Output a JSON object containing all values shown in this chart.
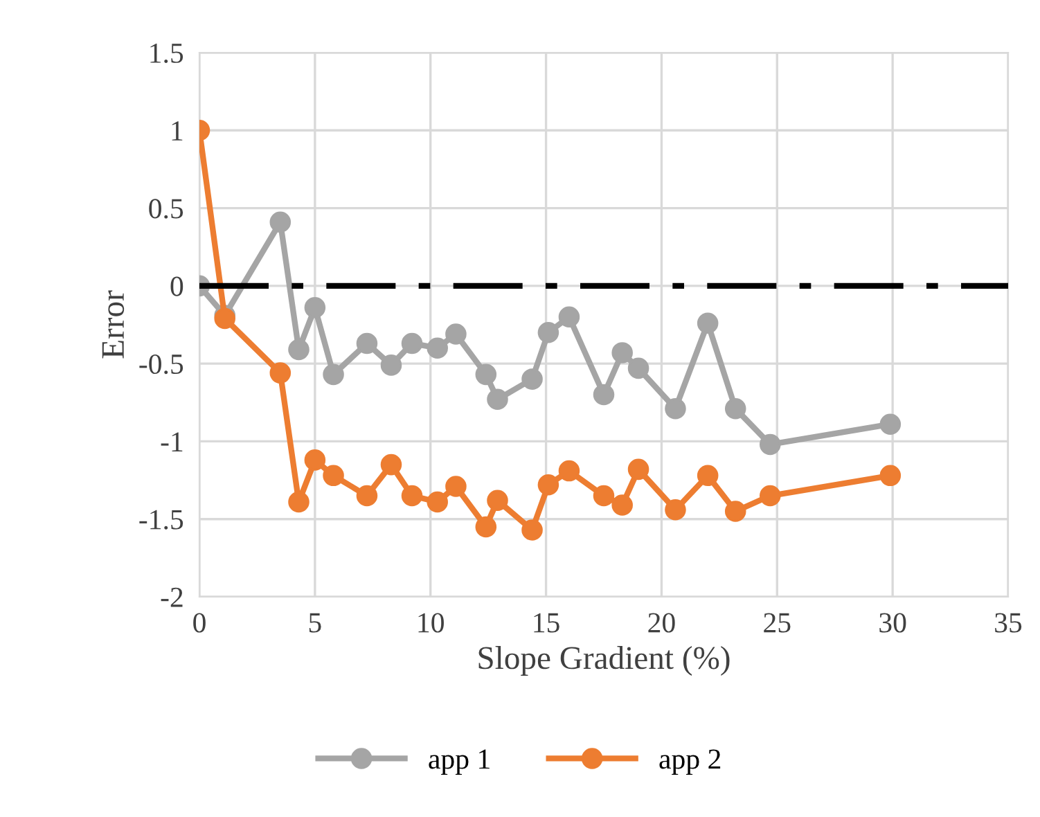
{
  "chart_data": {
    "type": "line",
    "xlabel": "Slope Gradient (%)",
    "ylabel": "Error",
    "xlim": [
      0,
      35
    ],
    "xticks": [
      0,
      5,
      10,
      15,
      20,
      25,
      30,
      35
    ],
    "ylim": [
      -2,
      1.5
    ],
    "yticks": [
      -2,
      -1.5,
      -1,
      -0.5,
      0,
      0.5,
      1,
      1.5
    ],
    "x": [
      0,
      1.1,
      3.5,
      4.3,
      5.0,
      5.8,
      7.25,
      8.3,
      9.2,
      10.3,
      11.1,
      12.4,
      12.9,
      14.4,
      15.1,
      16.0,
      17.5,
      18.3,
      19.0,
      20.6,
      22.0,
      23.2,
      24.7,
      29.9
    ],
    "series": [
      {
        "name": "app 1",
        "color": "#a5a5a5",
        "values": [
          0,
          -0.19,
          0.41,
          -0.41,
          -0.14,
          -0.57,
          -0.37,
          -0.51,
          -0.37,
          -0.4,
          -0.31,
          -0.57,
          -0.73,
          -0.6,
          -0.3,
          -0.2,
          -0.7,
          -0.43,
          -0.53,
          -0.79,
          -0.24,
          -0.79,
          -1.02,
          -0.89
        ]
      },
      {
        "name": "app 2",
        "color": "#ed7d31",
        "values": [
          1.0,
          -0.21,
          -0.56,
          -1.39,
          -1.12,
          -1.22,
          -1.35,
          -1.15,
          -1.35,
          -1.39,
          -1.29,
          -1.55,
          -1.38,
          -1.57,
          -1.28,
          -1.19,
          -1.35,
          -1.41,
          -1.18,
          -1.44,
          -1.22,
          -1.45,
          -1.35,
          -1.22
        ]
      }
    ],
    "ref_lines": [
      {
        "axis": "y",
        "value": 0,
        "color": "#000000",
        "line_style": "dashdot"
      }
    ],
    "marker": "circle",
    "line_style": "solid",
    "grid": true,
    "legend": "bottom"
  }
}
